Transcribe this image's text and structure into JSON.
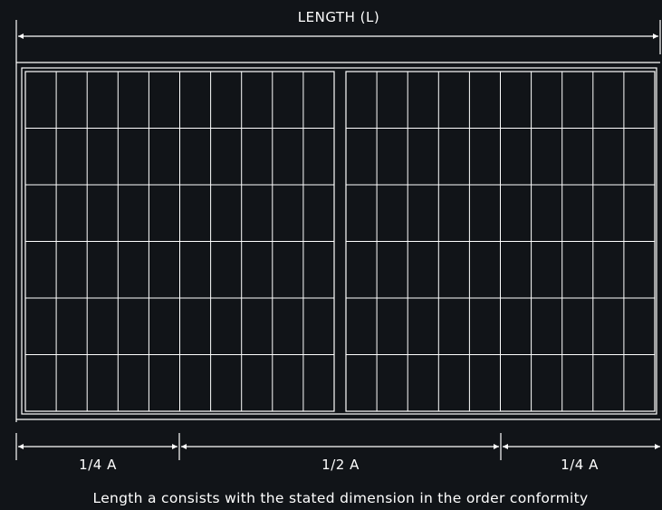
{
  "diagram": {
    "title": "LENGTH (L)",
    "segments": [
      {
        "label": "1/4 A"
      },
      {
        "label": "1/2 A"
      },
      {
        "label": "1/4 A"
      }
    ],
    "caption": "Length a consists with the stated dimension in the order conformity"
  },
  "panel": {
    "halves": 2,
    "columns_per_half": 10,
    "rows": 6
  },
  "colors": {
    "background": "#111418",
    "line": "#ffffff"
  }
}
